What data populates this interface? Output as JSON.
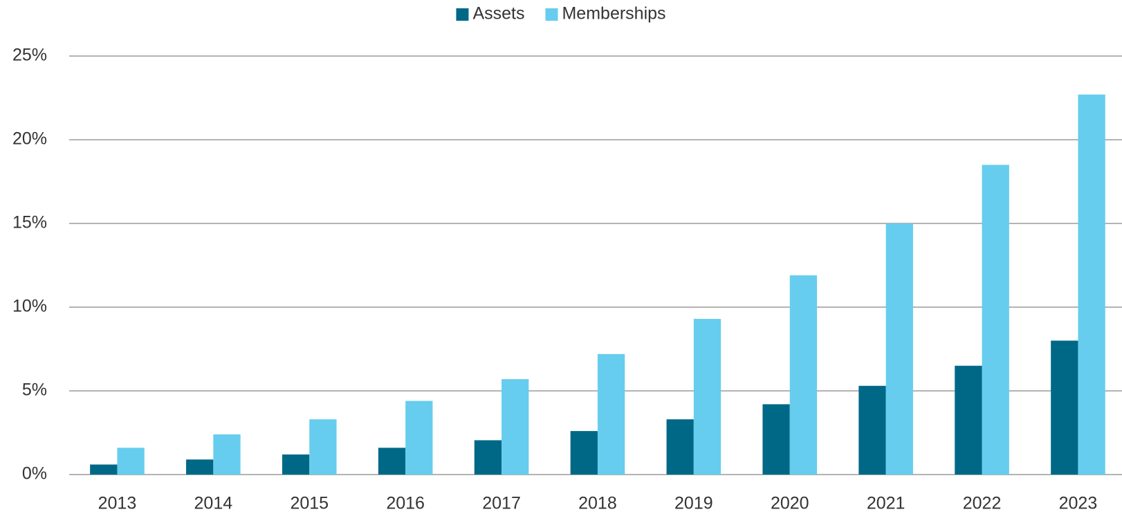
{
  "chart_data": {
    "type": "bar",
    "categories": [
      "2013",
      "2014",
      "2015",
      "2016",
      "2017",
      "2018",
      "2019",
      "2020",
      "2021",
      "2022",
      "2023"
    ],
    "series": [
      {
        "name": "Assets",
        "color": "#006887",
        "values": [
          0.6,
          0.9,
          1.2,
          1.6,
          2.05,
          2.6,
          3.3,
          4.2,
          5.3,
          6.5,
          8.0
        ]
      },
      {
        "name": "Memberships",
        "color": "#66cdee",
        "values": [
          1.6,
          2.4,
          3.3,
          4.4,
          5.7,
          7.2,
          9.3,
          11.9,
          15.0,
          18.5,
          22.7
        ]
      }
    ],
    "ylim": [
      0,
      25
    ],
    "yticks": [
      {
        "value": 0,
        "label": "0%"
      },
      {
        "value": 5,
        "label": "5%"
      },
      {
        "value": 10,
        "label": "10%"
      },
      {
        "value": 15,
        "label": "15%"
      },
      {
        "value": 20,
        "label": "20%"
      },
      {
        "value": 25,
        "label": "25%"
      }
    ],
    "grid": true,
    "legend": "top"
  }
}
